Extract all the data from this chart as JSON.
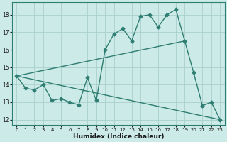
{
  "xlabel": "Humidex (Indice chaleur)",
  "bg_color": "#cceae7",
  "line_color": "#2e7d72",
  "grid_color": "#aacfcc",
  "xlim": [
    -0.5,
    23.5
  ],
  "ylim": [
    11.7,
    18.7
  ],
  "xticks": [
    0,
    1,
    2,
    3,
    4,
    5,
    6,
    7,
    8,
    9,
    10,
    11,
    12,
    13,
    14,
    15,
    16,
    17,
    18,
    19,
    20,
    21,
    22,
    23
  ],
  "yticks": [
    12,
    13,
    14,
    15,
    16,
    17,
    18
  ],
  "series1_x": [
    0,
    1,
    2,
    3,
    4,
    5,
    6,
    7,
    8,
    9,
    10,
    11,
    12,
    13,
    14,
    15,
    16,
    17,
    18,
    19,
    20,
    21,
    22,
    23
  ],
  "series1_y": [
    14.5,
    13.8,
    13.7,
    14.0,
    13.1,
    13.2,
    13.0,
    12.85,
    14.4,
    13.1,
    16.0,
    16.9,
    17.2,
    16.5,
    17.9,
    18.0,
    17.3,
    18.0,
    18.3,
    16.5,
    14.7,
    12.8,
    13.0,
    12.0
  ],
  "series2_x": [
    0,
    23
  ],
  "series2_y": [
    14.5,
    12.0
  ],
  "series3_x": [
    0,
    19
  ],
  "series3_y": [
    14.5,
    16.5
  ],
  "markersize": 2.5,
  "linewidth": 1.0
}
